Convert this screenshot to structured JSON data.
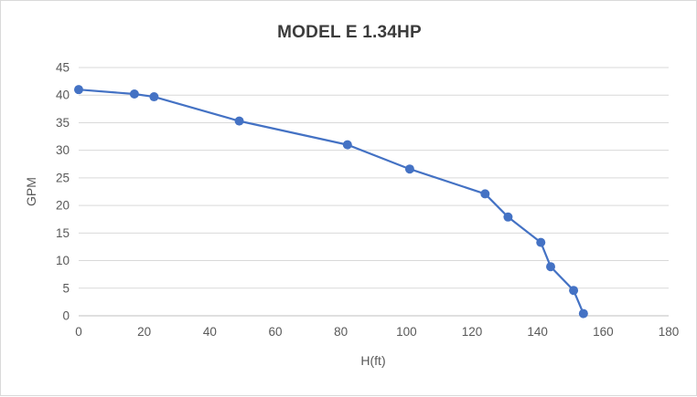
{
  "frame": {
    "background": "#ffffff",
    "border_color": "#d9d9d9"
  },
  "chart_data": {
    "type": "line",
    "title": "MODEL E 1.34HP",
    "xlabel": "H(ft)",
    "ylabel": "GPM",
    "xlim": [
      0,
      180
    ],
    "ylim": [
      0,
      45
    ],
    "x_ticks": [
      0,
      20,
      40,
      60,
      80,
      100,
      120,
      140,
      160,
      180
    ],
    "y_ticks": [
      0,
      5,
      10,
      15,
      20,
      25,
      30,
      35,
      40,
      45
    ],
    "grid": "horizontal-only",
    "legend": "none",
    "series": [
      {
        "name": "GPM vs H(ft)",
        "color": "#4472c4",
        "marker": "circle",
        "points": [
          {
            "x": 0,
            "y": 41.0
          },
          {
            "x": 17,
            "y": 40.2
          },
          {
            "x": 23,
            "y": 39.7
          },
          {
            "x": 49,
            "y": 35.3
          },
          {
            "x": 82,
            "y": 31.0
          },
          {
            "x": 101,
            "y": 26.6
          },
          {
            "x": 124,
            "y": 22.1
          },
          {
            "x": 131,
            "y": 17.9
          },
          {
            "x": 141,
            "y": 13.3
          },
          {
            "x": 144,
            "y": 8.9
          },
          {
            "x": 151,
            "y": 4.6
          },
          {
            "x": 154,
            "y": 0.4
          }
        ]
      }
    ],
    "style": {
      "gridline_color": "#d9d9d9",
      "axis_line_color": "#bfbfbf",
      "tick_label_color": "#595959",
      "title_color": "#3b3b3b",
      "line_width": 2.2,
      "marker_radius": 5
    }
  }
}
